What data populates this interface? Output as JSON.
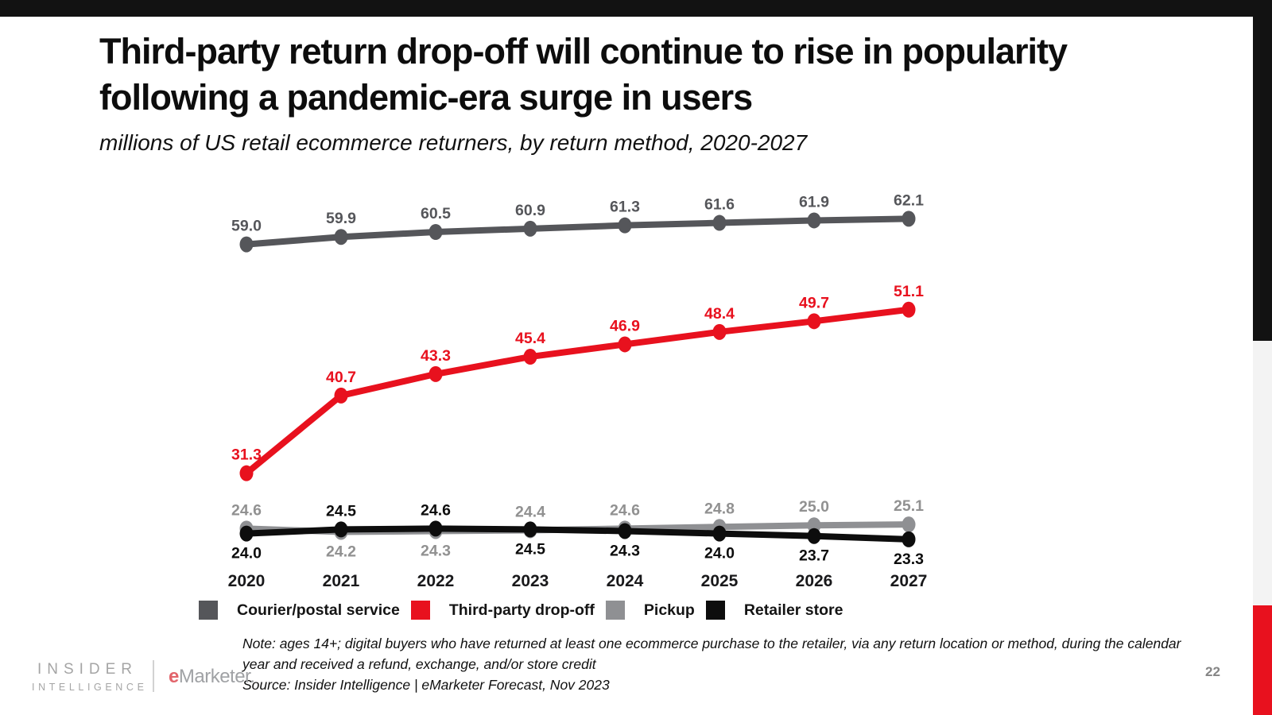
{
  "header": {
    "title": "Third-party return drop-off will continue to rise in popularity following a pandemic-era surge in users",
    "subtitle": "millions of US retail ecommerce returners, by return method, 2020-2027"
  },
  "chart_data": {
    "type": "line",
    "categories": [
      "2020",
      "2021",
      "2022",
      "2023",
      "2024",
      "2025",
      "2026",
      "2027"
    ],
    "series": [
      {
        "name": "Courier/postal service",
        "color": "#55565A",
        "label_color": "#55565A",
        "values": [
          59.0,
          59.9,
          60.5,
          60.9,
          61.3,
          61.6,
          61.9,
          62.1
        ],
        "label_pos": [
          "above",
          "above",
          "above",
          "above",
          "above",
          "above",
          "above",
          "above"
        ]
      },
      {
        "name": "Third-party drop-off",
        "color": "#E8111E",
        "label_color": "#E8111E",
        "values": [
          31.3,
          40.7,
          43.3,
          45.4,
          46.9,
          48.4,
          49.7,
          51.1
        ],
        "label_pos": [
          "above",
          "above",
          "above",
          "above",
          "above",
          "above",
          "above",
          "above"
        ]
      },
      {
        "name": "Pickup",
        "color": "#8F9093",
        "label_color": "#919191",
        "values": [
          24.6,
          24.2,
          24.3,
          24.4,
          24.6,
          24.8,
          25.0,
          25.1
        ],
        "label_pos": [
          "above",
          "below",
          "below",
          "above",
          "above",
          "above",
          "above",
          "above"
        ]
      },
      {
        "name": "Retailer store",
        "color": "#0D0D0D",
        "label_color": "#0D0D0D",
        "values": [
          24.0,
          24.5,
          24.6,
          24.5,
          24.3,
          24.0,
          23.7,
          23.3
        ],
        "label_pos": [
          "below",
          "above",
          "above",
          "below",
          "below",
          "below",
          "below",
          "below"
        ]
      }
    ],
    "title": "Third-party return drop-off will continue to rise in popularity following a pandemic-era surge in users",
    "xlabel": "",
    "ylabel": "millions of US retail ecommerce returners",
    "ylim": [
      22,
      64
    ],
    "grid": false,
    "legend_position": "bottom"
  },
  "footer": {
    "note": "Note: ages 14+; digital buyers who have returned at least one ecommerce purchase to the retailer, via any return location or method, during the calendar year and received a refund, exchange, and/or store credit",
    "source": "Source: Insider Intelligence | eMarketer Forecast, Nov 2023",
    "page_number": "22"
  },
  "branding": {
    "insider_line1": "INSIDER",
    "insider_line2": "INTELLIGENCE",
    "emarketer_prefix": "e",
    "emarketer_rest": "Marketer",
    "emarketer_dot": "."
  },
  "colors": {
    "top_bar": "#121212",
    "side_gray": "#F3F3F3",
    "accent_red": "#E8111E",
    "dark_gray": "#55565A",
    "mid_gray": "#8F9093",
    "black": "#0D0D0D",
    "background": "#FFFFFF"
  }
}
